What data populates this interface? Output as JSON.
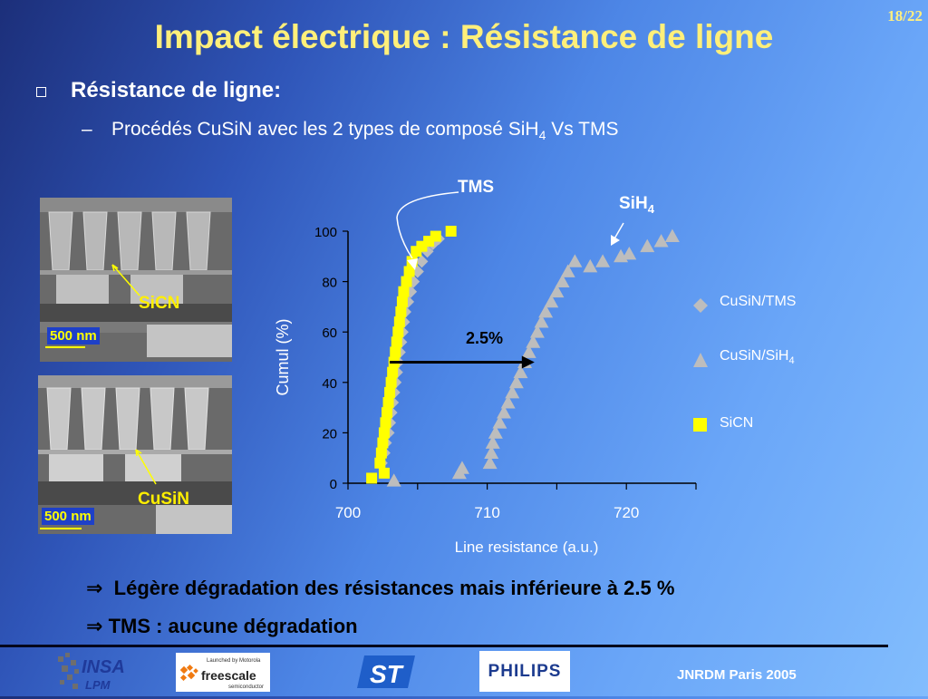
{
  "slide": {
    "page_number": "18/22",
    "title": "Impact électrique : Résistance de ligne",
    "bullet": "Résistance de ligne:",
    "sub_bullet_dash": "–",
    "sub_bullet_main": "Procédés CuSiN avec les 2 types de composé SiH",
    "sub_bullet_sub": "4",
    "sub_bullet_end": " Vs TMS",
    "conclusion_arrow": "⇒",
    "conclusion_1": "Légère dégradation des résistances mais inférieure à 2.5 %",
    "conclusion_2": "TMS : aucune dégradation",
    "footer_event": "JNRDM Paris 2005"
  },
  "images": {
    "top": {
      "label": "SiCN",
      "scale": "500 nm"
    },
    "bottom": {
      "label": "CuSiN",
      "scale": "500 nm"
    }
  },
  "logos": {
    "insa": "INSA",
    "insa_sub": "LPM",
    "freescale": "freescale",
    "freescale_tag": "Launched by Motorola",
    "freescale_sub": "semiconductor",
    "st": "ST",
    "philips": "PHILIPS"
  },
  "chart_data": {
    "type": "scatter",
    "xlabel": "Line resistance (a.u.)",
    "ylabel": "Cumul (%)",
    "xlim": [
      700,
      725
    ],
    "ylim": [
      0,
      100
    ],
    "x_ticks": [
      700,
      710,
      720
    ],
    "y_ticks": [
      0,
      20,
      40,
      60,
      80,
      100
    ],
    "annotations": {
      "tms": "TMS",
      "sih4_main": "SiH",
      "sih4_sub": "4",
      "shift": "2.5%"
    },
    "legend_position": "right",
    "series": [
      {
        "name": "CuSiN/TMS",
        "marker": "diamond",
        "color": "#bdbdbd",
        "points": [
          [
            702.4,
            8
          ],
          [
            702.6,
            12
          ],
          [
            702.7,
            16
          ],
          [
            702.9,
            20
          ],
          [
            703.0,
            24
          ],
          [
            703.1,
            28
          ],
          [
            703.2,
            32
          ],
          [
            703.3,
            36
          ],
          [
            703.4,
            40
          ],
          [
            703.5,
            44
          ],
          [
            703.6,
            48
          ],
          [
            703.7,
            52
          ],
          [
            703.8,
            56
          ],
          [
            703.9,
            60
          ],
          [
            704.0,
            64
          ],
          [
            704.1,
            68
          ],
          [
            704.3,
            72
          ],
          [
            704.5,
            76
          ],
          [
            704.7,
            80
          ],
          [
            705.0,
            84
          ],
          [
            705.3,
            88
          ],
          [
            705.7,
            92
          ],
          [
            706.1,
            95
          ],
          [
            706.5,
            97
          ]
        ]
      },
      {
        "name": "CuSiN/SiH4",
        "marker": "triangle",
        "color": "#bdbdbd",
        "points": [
          [
            703.3,
            1
          ],
          [
            708.0,
            4
          ],
          [
            708.2,
            6
          ],
          [
            710.2,
            8
          ],
          [
            710.3,
            12
          ],
          [
            710.4,
            16
          ],
          [
            710.6,
            20
          ],
          [
            710.9,
            24
          ],
          [
            711.2,
            28
          ],
          [
            711.5,
            32
          ],
          [
            711.8,
            36
          ],
          [
            712.1,
            40
          ],
          [
            712.4,
            44
          ],
          [
            712.7,
            48
          ],
          [
            713.0,
            52
          ],
          [
            713.3,
            56
          ],
          [
            713.6,
            60
          ],
          [
            713.9,
            64
          ],
          [
            714.2,
            68
          ],
          [
            714.6,
            72
          ],
          [
            715.0,
            76
          ],
          [
            715.4,
            80
          ],
          [
            715.8,
            84
          ],
          [
            716.3,
            88
          ],
          [
            717.4,
            86
          ],
          [
            718.3,
            88
          ],
          [
            719.6,
            90
          ],
          [
            720.2,
            91
          ],
          [
            721.5,
            94
          ],
          [
            722.5,
            96
          ],
          [
            723.3,
            98
          ]
        ]
      },
      {
        "name": "SiCN",
        "marker": "square",
        "color": "#ffff00",
        "points": [
          [
            701.7,
            2
          ],
          [
            702.6,
            4
          ],
          [
            702.3,
            8
          ],
          [
            702.4,
            12
          ],
          [
            702.5,
            16
          ],
          [
            702.6,
            20
          ],
          [
            702.7,
            24
          ],
          [
            702.8,
            28
          ],
          [
            702.9,
            32
          ],
          [
            703.0,
            36
          ],
          [
            703.1,
            40
          ],
          [
            703.2,
            44
          ],
          [
            703.3,
            48
          ],
          [
            703.4,
            52
          ],
          [
            703.5,
            56
          ],
          [
            703.6,
            60
          ],
          [
            703.7,
            64
          ],
          [
            703.8,
            68
          ],
          [
            703.9,
            72
          ],
          [
            704.0,
            76
          ],
          [
            704.2,
            80
          ],
          [
            704.4,
            84
          ],
          [
            704.6,
            88
          ],
          [
            704.9,
            92
          ],
          [
            705.3,
            94
          ],
          [
            705.8,
            96
          ],
          [
            706.3,
            98
          ],
          [
            707.4,
            100
          ]
        ]
      }
    ]
  }
}
